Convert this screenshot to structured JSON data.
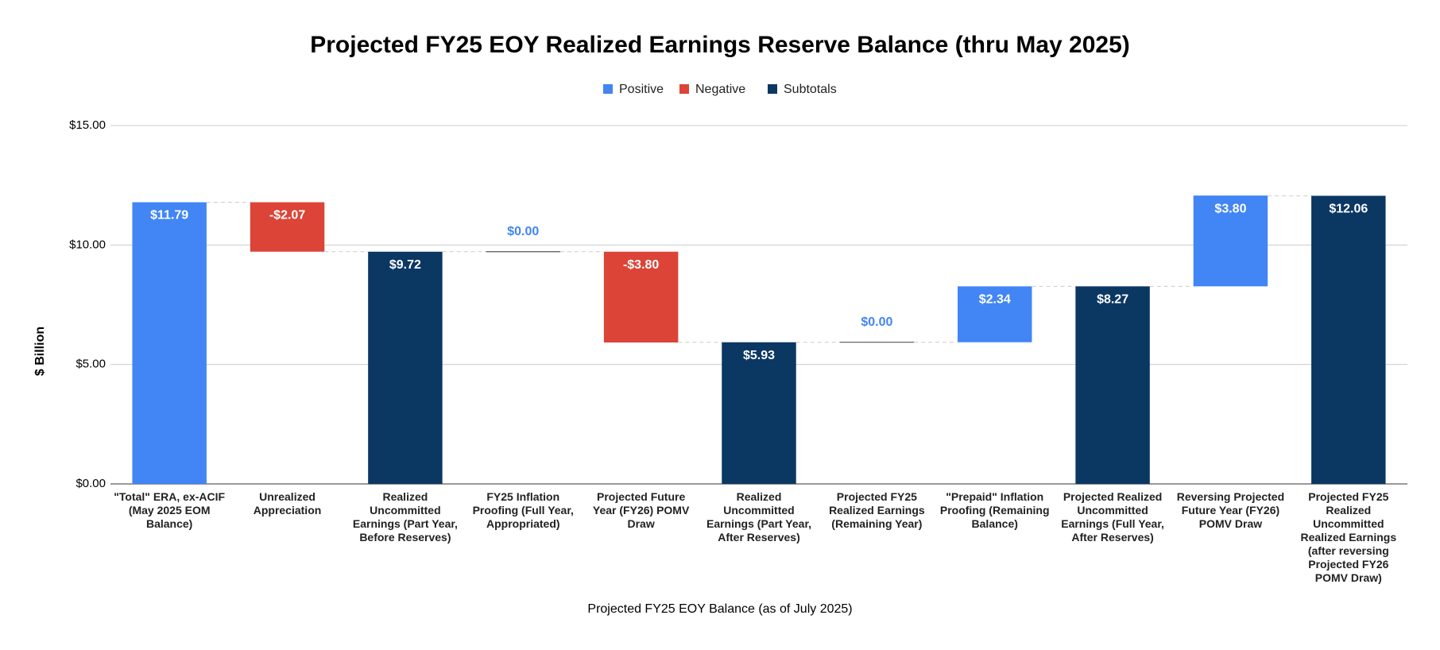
{
  "chart_data": {
    "type": "waterfall",
    "title": "Projected FY25 EOY Realized Earnings Reserve Balance (thru May 2025)",
    "x_label": "Projected FY25 EOY Balance (as of July 2025)",
    "y_label": "$ Billion",
    "categories": [
      "\"Total\" ERA, ex-ACIF (May 2025 EOM Balance)",
      "Unrealized Appreciation",
      "Realized Uncommitted Earnings (Part Year, Before Reserves)",
      "FY25 Inflation Proofing (Full Year, Appropriated)",
      "Projected Future Year (FY26) POMV Draw",
      "Realized Uncommitted Earnings (Part Year, After Reserves)",
      "Projected FY25 Realized Earnings (Remaining Year)",
      "\"Prepaid\" Inflation Proofing (Remaining Balance)",
      "Projected Realized Uncommitted Earnings (Full Year, After Reserves)",
      "Reversing Projected Future Year (FY26) POMV Draw",
      "Projected FY25 Realized Uncommitted Realized Earnings (after reversing Projected FY26 POMV Draw)"
    ],
    "values": [
      11.79,
      -2.07,
      9.72,
      0.0,
      -3.8,
      5.93,
      0.0,
      2.34,
      8.27,
      3.8,
      12.06
    ],
    "value_labels": [
      "$11.79",
      "-$2.07",
      "$9.72",
      "$0.00",
      "-$3.80",
      "$5.93",
      "$0.00",
      "$2.34",
      "$8.27",
      "$3.80",
      "$12.06"
    ],
    "subtotal": [
      false,
      false,
      true,
      false,
      false,
      true,
      false,
      false,
      true,
      false,
      true
    ],
    "legend": [
      {
        "name": "Positive",
        "color": "#4285f4"
      },
      {
        "name": "Negative",
        "color": "#db4437"
      },
      {
        "name": "Subtotals",
        "color": "#0b3763"
      }
    ],
    "ylim": [
      0,
      15
    ],
    "yticks": [
      {
        "value": 0,
        "label": "$0.00"
      },
      {
        "value": 5,
        "label": "$5.00"
      },
      {
        "value": 10,
        "label": "$10.00"
      },
      {
        "value": 15,
        "label": "$15.00"
      }
    ],
    "grid": true
  }
}
